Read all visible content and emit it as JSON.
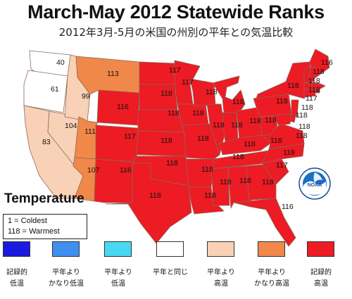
{
  "title": "March-May 2012 Statewide Ranks",
  "subtitle": "2012年3月-5月の米国の州別の平年との気温比較",
  "legend": {
    "title": "Temperature",
    "key_coldest": "1 = Coldest",
    "key_warmest": "118 = Warmest",
    "categories": [
      {
        "line1": "記録的",
        "line2": "低温",
        "color": "#1a1adf"
      },
      {
        "line1": "平年より",
        "line2": "かなり低温",
        "color": "#3f8ff0"
      },
      {
        "line1": "平年より",
        "line2": "低温",
        "color": "#48d8f2"
      },
      {
        "line1": "平年と同じ",
        "line2": "",
        "color": "#ffffff"
      },
      {
        "line1": "平年より",
        "line2": "高温",
        "color": "#f9d1b6"
      },
      {
        "line1": "平年より",
        "line2": "かなり高温",
        "color": "#f0884a"
      },
      {
        "line1": "記録的",
        "line2": "高温",
        "color": "#ec1b24"
      }
    ]
  },
  "map_colors": {
    "record_warm": "#ec1b24",
    "much_above": "#f0884a",
    "above": "#f9d1b6",
    "near_normal": "#ffffff",
    "border": "#8a6a5a"
  },
  "logo": "NOAA",
  "state_ranks": {
    "WA": "40",
    "OR": "61",
    "ID": "99",
    "MT": "113",
    "ND": "117",
    "MN": "117",
    "WY": "116",
    "SD": "118",
    "NV": "104",
    "UT": "111",
    "CO": "117",
    "CA": "83",
    "AZ": "107",
    "NM": "116",
    "NE": "118",
    "KS": "118",
    "OK": "118",
    "TX": "118",
    "IA": "118",
    "MO": "118",
    "AR": "118",
    "LA": "118",
    "WI": "118",
    "IL": "118",
    "MI": "118",
    "IN": "118",
    "OH": "118",
    "KY": "118",
    "TN": "118",
    "MS": "118",
    "AL": "118",
    "GA": "118",
    "FL": "116",
    "SC": "117",
    "NC": "118",
    "VA": "118",
    "WV": "118",
    "PA": "118",
    "NY": "118",
    "ME": "116",
    "VT": "118",
    "NH": "118",
    "MA": "118",
    "RI": "117",
    "CT": "118",
    "NJ": "118",
    "DE": "118",
    "MD": "118"
  }
}
